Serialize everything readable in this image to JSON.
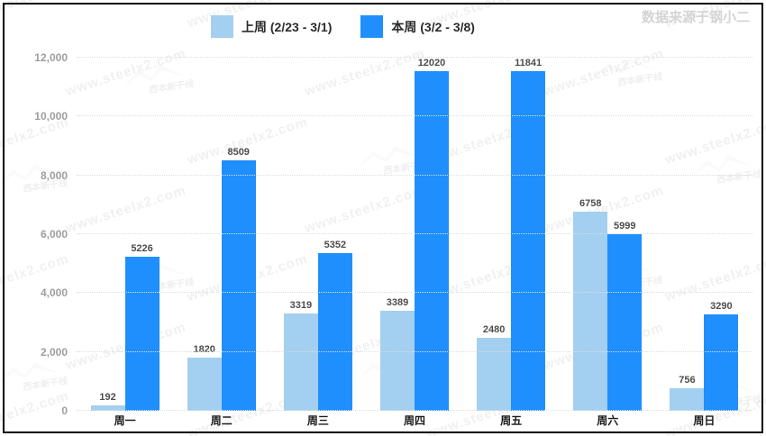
{
  "source_label": "数据来源于钢小二",
  "watermark": {
    "url_text": "www.steelx2.com",
    "logo_text": "西本新干线"
  },
  "legend": [
    {
      "label": "上周 (2/23 - 3/1)",
      "color": "#a3cff0"
    },
    {
      "label": "本周 (3/2 - 3/8)",
      "color": "#1e8ffc"
    }
  ],
  "chart_data": {
    "type": "bar",
    "categories": [
      "周一",
      "周二",
      "周三",
      "周四",
      "周五",
      "周六",
      "周日"
    ],
    "series": [
      {
        "name": "上周 (2/23 - 3/1)",
        "color": "#a3cff0",
        "values": [
          192,
          1820,
          3319,
          3389,
          2480,
          6758,
          756
        ]
      },
      {
        "name": "本周 (3/2 - 3/8)",
        "color": "#1e8ffc",
        "values": [
          5226,
          8509,
          5352,
          12020,
          11841,
          5999,
          3290
        ]
      }
    ],
    "title": "",
    "xlabel": "",
    "ylabel": "",
    "ylim": [
      0,
      12000
    ],
    "y_ticks": [
      "0",
      "2,000",
      "4,000",
      "6,000",
      "8,000",
      "10,000",
      "12,000"
    ],
    "grid": "horizontal-dotted",
    "legend_position": "top"
  }
}
